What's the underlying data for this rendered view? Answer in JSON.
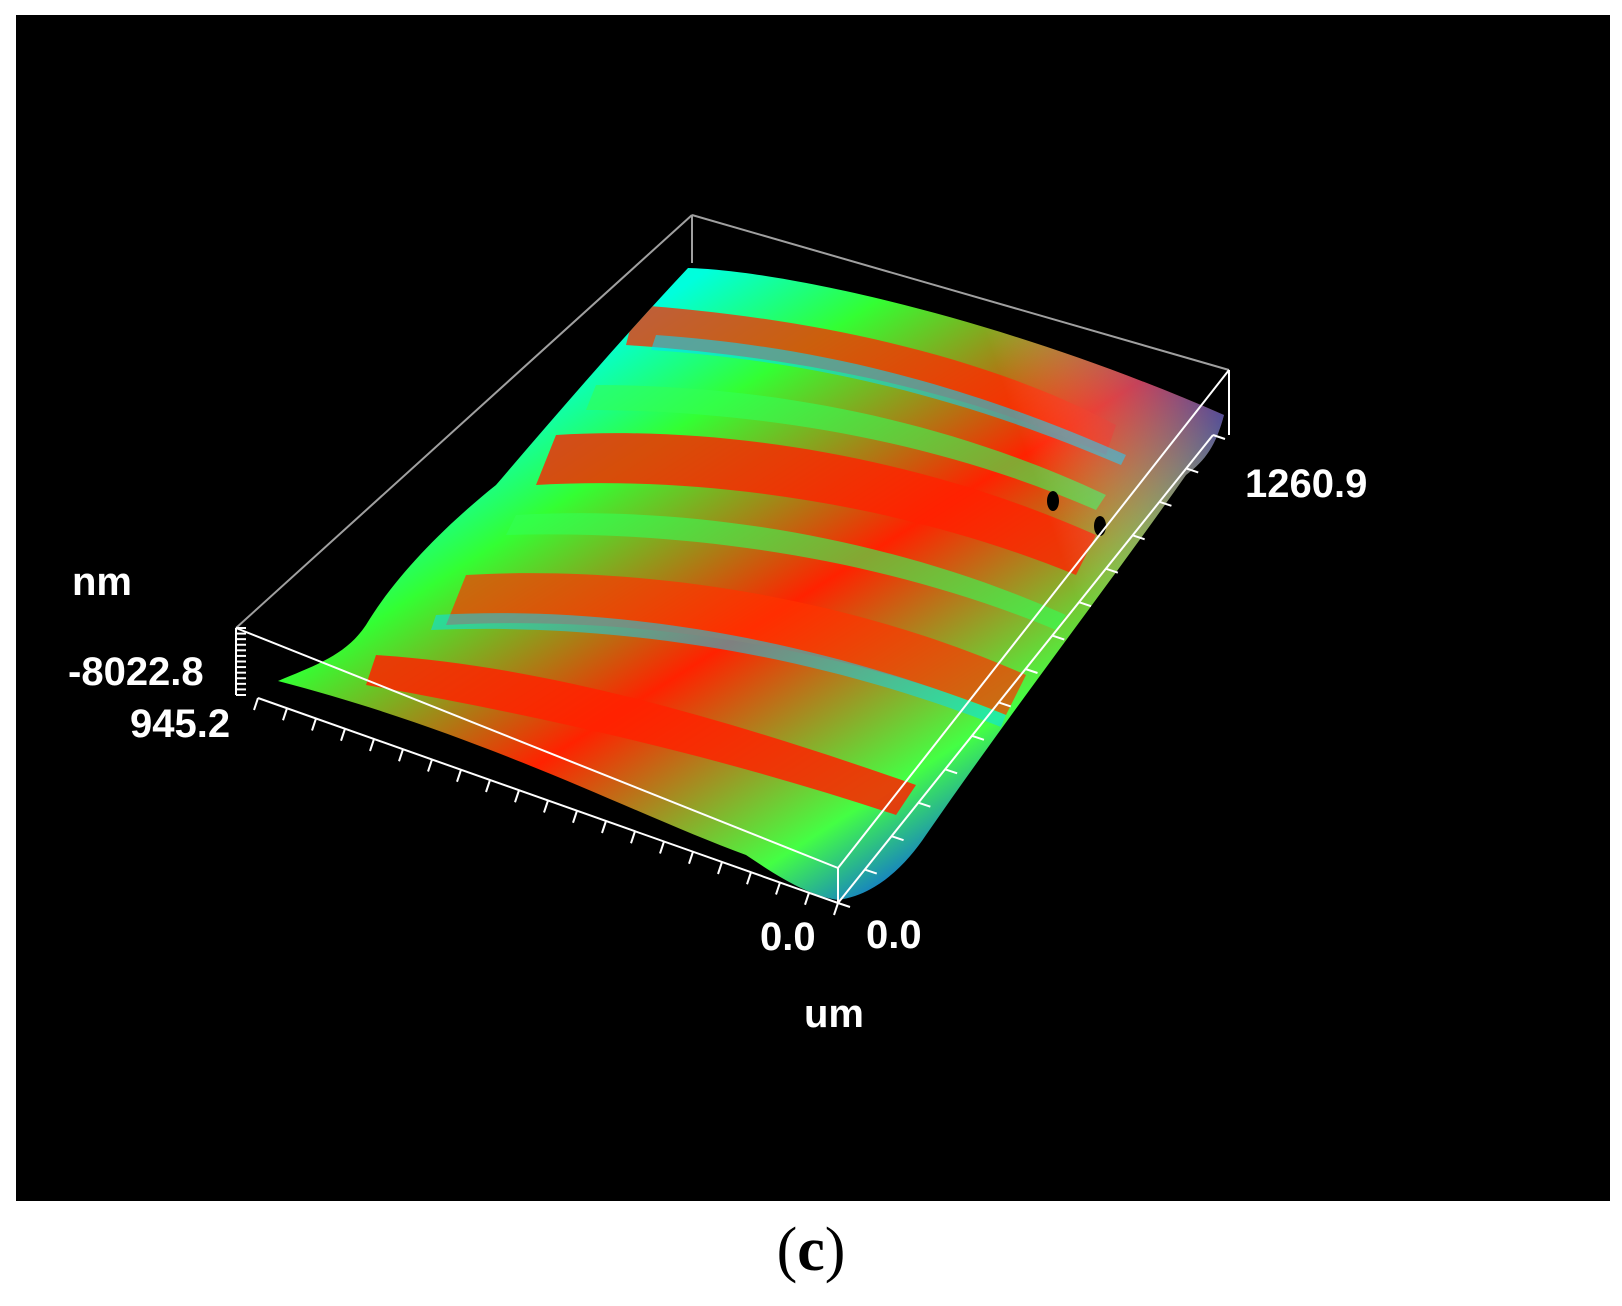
{
  "chart_data": {
    "type": "surface-3d",
    "z_unit_label": "nm",
    "z_top_label": "-8022.8",
    "z_bottom_label": "945.2",
    "x_unit_label": "um",
    "x_axis_zero_label": "0.0",
    "y_axis_zero_label": "0.0",
    "y_axis_max_label": "1260.9",
    "colormap": [
      "#0033ff",
      "#00aaff",
      "#00ffcc",
      "#33ff33",
      "#ffbb00",
      "#ff2200"
    ],
    "grid": "off",
    "background": "#000000"
  },
  "caption": {
    "open": "(",
    "letter": "c",
    "close": ")"
  }
}
